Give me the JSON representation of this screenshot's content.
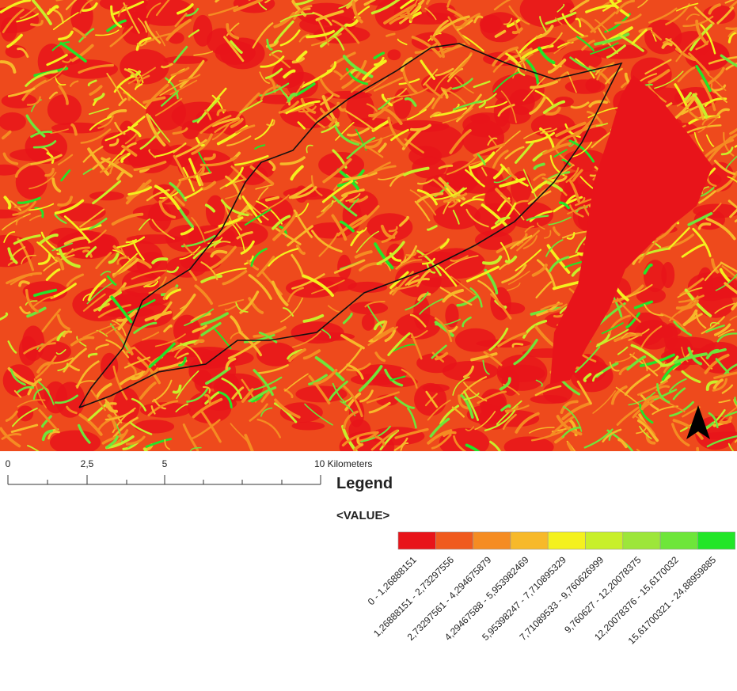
{
  "scale_bar": {
    "labels": [
      "0",
      "2,5",
      "5",
      "10 Kilometers"
    ]
  },
  "legend": {
    "title": "Legend",
    "field": "<VALUE>",
    "classes": [
      {
        "label": "0 - 1,26888151",
        "color": "#e8141a"
      },
      {
        "label": "1,26888151 - 2,73297556",
        "color": "#f05a1e"
      },
      {
        "label": "2,73297561 - 4,294675879",
        "color": "#f58c22"
      },
      {
        "label": "4,29467588 - 5,953982469",
        "color": "#f7b92a"
      },
      {
        "label": "5,95398247 - 7,710895329",
        "color": "#f4f11e"
      },
      {
        "label": "7,71089533 - 9,760626999",
        "color": "#c8ef2a"
      },
      {
        "label": "9,760627 - 12,20078375",
        "color": "#9de63a"
      },
      {
        "label": "12,20078376 - 15,6170032",
        "color": "#6ee63a"
      },
      {
        "label": "15,61700321 - 24,88959885",
        "color": "#22e628"
      }
    ]
  }
}
